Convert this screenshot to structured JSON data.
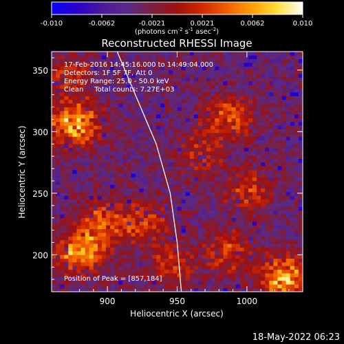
{
  "chart_data": {
    "type": "heatmap",
    "title": "Reconstructed RHESSI Image",
    "xlabel": "Heliocentric X (arcsec)",
    "ylabel": "Heliocentric Y (arcsec)",
    "xlim": [
      860,
      1040
    ],
    "ylim": [
      170,
      365
    ],
    "x_ticks": [
      900,
      950,
      1000
    ],
    "y_ticks": [
      200,
      250,
      300,
      350
    ],
    "colorbar": {
      "ticks": [
        "-0.010",
        "-0.0062",
        "-0.0021",
        "0.0021",
        "0.0062",
        "0.010"
      ],
      "label": "(photons cm",
      "label_exp1": "-2",
      "label_mid": " s",
      "label_exp2": "-1",
      "label_mid2": " asec",
      "label_exp3": "-2",
      "label_end": ")",
      "range": [
        -0.01,
        0.01
      ],
      "colors": [
        "#0a00ff",
        "#2a00c8",
        "#4a1a9a",
        "#5a2a8a",
        "#7a2040",
        "#a01010",
        "#d02a00",
        "#f06000",
        "#ffa000",
        "#ffe040",
        "#ffffff"
      ]
    },
    "annotations": [
      "17-Feb-2016 14:45:16.000 to 14:49:04.000",
      "Detectors: 1F 5F 7F, Att 0",
      "Energy Range: 25.0 - 50.0 keV",
      "Clean     Total counts: 7.27E+03"
    ],
    "peak_label": "Position of Peak = [857,184]",
    "hot_regions": [
      {
        "x": 875,
        "y": 305,
        "level": 0.0095
      },
      {
        "x": 878,
        "y": 200,
        "level": 0.0085
      },
      {
        "x": 895,
        "y": 225,
        "level": 0.006
      },
      {
        "x": 925,
        "y": 225,
        "level": 0.005
      },
      {
        "x": 985,
        "y": 310,
        "level": 0.006
      },
      {
        "x": 1000,
        "y": 250,
        "level": 0.005
      },
      {
        "x": 985,
        "y": 200,
        "level": 0.005
      },
      {
        "x": 1025,
        "y": 180,
        "level": 0.0095
      },
      {
        "x": 870,
        "y": 345,
        "level": 0.004
      },
      {
        "x": 945,
        "y": 190,
        "level": 0.0045
      },
      {
        "x": 965,
        "y": 280,
        "level": 0.004
      }
    ],
    "limb_curve": [
      [
        907,
        365
      ],
      [
        920,
        330
      ],
      [
        935,
        290
      ],
      [
        945,
        250
      ],
      [
        950,
        210
      ],
      [
        953,
        170
      ]
    ]
  },
  "footer": {
    "date": "18-May-2022 06:23"
  }
}
